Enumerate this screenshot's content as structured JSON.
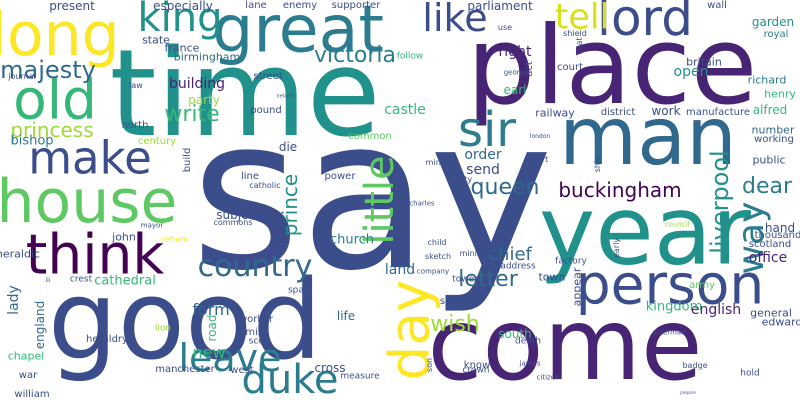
{
  "words": [
    {
      "text": "say",
      "color": "#3b4d8b"
    },
    {
      "text": "time",
      "color": "#21918c"
    },
    {
      "text": "place",
      "color": "#482475"
    },
    {
      "text": "good",
      "color": "#3b4d8b"
    },
    {
      "text": "come",
      "color": "#482475"
    },
    {
      "text": "year",
      "color": "#21918c"
    },
    {
      "text": "man",
      "color": "#31688e"
    },
    {
      "text": "person",
      "color": "#3b4d8b"
    },
    {
      "text": "house",
      "color": "#5ec962"
    },
    {
      "text": "think",
      "color": "#440154"
    },
    {
      "text": "make",
      "color": "#3b4d8b"
    },
    {
      "text": "great",
      "color": "#2a7c8e"
    },
    {
      "text": "long",
      "color": "#fde725"
    },
    {
      "text": "old",
      "color": "#35b779"
    },
    {
      "text": "day",
      "color": "#fde725"
    },
    {
      "text": "duke",
      "color": "#2a7c8e"
    },
    {
      "text": "little",
      "color": "#5ec962"
    },
    {
      "text": "lord",
      "color": "#3b4d8b"
    },
    {
      "text": "sir",
      "color": "#2a7c8e"
    },
    {
      "text": "leave",
      "color": "#2a7c8e"
    },
    {
      "text": "country",
      "color": "#31688e"
    },
    {
      "text": "queen",
      "color": "#31688e"
    },
    {
      "text": "king",
      "color": "#21918c"
    },
    {
      "text": "like",
      "color": "#3b4d8b"
    },
    {
      "text": "tell",
      "color": "#d8e219"
    },
    {
      "text": "way",
      "color": "#2a7c8e"
    },
    {
      "text": "liverpool",
      "color": "#21918c"
    },
    {
      "text": "buckingham",
      "color": "#440154"
    },
    {
      "text": "majesty",
      "color": "#31688e"
    },
    {
      "text": "victoria",
      "color": "#2a7c8e"
    },
    {
      "text": "letter",
      "color": "#31688e"
    },
    {
      "text": "wish",
      "color": "#a0da39"
    },
    {
      "text": "prince",
      "color": "#21918c"
    },
    {
      "text": "write",
      "color": "#35b779"
    },
    {
      "text": "princess",
      "color": "#a0da39"
    },
    {
      "text": "dear",
      "color": "#2a7c8e"
    },
    {
      "text": "chief",
      "color": "#31688e"
    },
    {
      "text": "form",
      "color": "#31688e"
    },
    {
      "text": "new",
      "color": "#35b779"
    },
    {
      "text": "english",
      "color": "#482475"
    },
    {
      "text": "open",
      "color": "#21918c"
    },
    {
      "text": "castle",
      "color": "#35b779"
    },
    {
      "text": "kingdom",
      "color": "#35b779"
    },
    {
      "text": "land",
      "color": "#31688e"
    },
    {
      "text": "order",
      "color": "#31688e"
    },
    {
      "text": "send",
      "color": "#3b4d8b"
    },
    {
      "text": "right",
      "color": "#482475"
    },
    {
      "text": "office",
      "color": "#482475"
    },
    {
      "text": "building",
      "color": "#482475"
    },
    {
      "text": "party",
      "color": "#a0da39"
    },
    {
      "text": "bishop",
      "color": "#2a7c8e"
    },
    {
      "text": "cathedral",
      "color": "#35b779"
    },
    {
      "text": "subject",
      "color": "#3b4d8b"
    },
    {
      "text": "road",
      "color": "#35b779"
    },
    {
      "text": "church",
      "color": "#2a7c8e"
    },
    {
      "text": "life",
      "color": "#31688e"
    },
    {
      "text": "present",
      "color": "#3b4d8b"
    },
    {
      "text": "especially",
      "color": "#3b4d8b"
    },
    {
      "text": "parliament",
      "color": "#3b4d8b"
    },
    {
      "text": "state",
      "color": "#3b4d8b"
    },
    {
      "text": "france",
      "color": "#3b4d8b"
    },
    {
      "text": "birmingham",
      "color": "#31688e"
    },
    {
      "text": "lane",
      "color": "#3b4d8b"
    },
    {
      "text": "enemy",
      "color": "#3b4d8b"
    },
    {
      "text": "supporter",
      "color": "#3b4d8b"
    },
    {
      "text": "wall",
      "color": "#3b4d8b"
    },
    {
      "text": "garden",
      "color": "#21918c"
    },
    {
      "text": "royal",
      "color": "#2a7c8e"
    },
    {
      "text": "britain",
      "color": "#3b4d8b"
    },
    {
      "text": "richard",
      "color": "#2a7c8e"
    },
    {
      "text": "henry",
      "color": "#35b779"
    },
    {
      "text": "alfred",
      "color": "#35b779"
    },
    {
      "text": "number",
      "color": "#31688e"
    },
    {
      "text": "working",
      "color": "#3b4d8b"
    },
    {
      "text": "public",
      "color": "#3b4d8b"
    },
    {
      "text": "hand",
      "color": "#3b4d8b"
    },
    {
      "text": "thousand",
      "color": "#3b4d8b"
    },
    {
      "text": "scotland",
      "color": "#3b4d8b"
    },
    {
      "text": "general",
      "color": "#3b4d8b"
    },
    {
      "text": "edward",
      "color": "#3b4d8b"
    },
    {
      "text": "army",
      "color": "#5ec962"
    },
    {
      "text": "work",
      "color": "#3b4d8b"
    },
    {
      "text": "manufacture",
      "color": "#3b4d8b"
    },
    {
      "text": "railway",
      "color": "#3b4d8b"
    },
    {
      "text": "district",
      "color": "#3b4d8b"
    },
    {
      "text": "court",
      "color": "#3b4d8b"
    },
    {
      "text": "earl",
      "color": "#35b779"
    },
    {
      "text": "south",
      "color": "#35b779"
    },
    {
      "text": "street",
      "color": "#3b4d8b"
    },
    {
      "text": "pound",
      "color": "#3b4d8b"
    },
    {
      "text": "common",
      "color": "#5ec962"
    },
    {
      "text": "north",
      "color": "#3b4d8b"
    },
    {
      "text": "century",
      "color": "#a0da39"
    },
    {
      "text": "die",
      "color": "#3b4d8b"
    },
    {
      "text": "line",
      "color": "#3b4d8b"
    },
    {
      "text": "catholic",
      "color": "#3b4d8b"
    },
    {
      "text": "power",
      "color": "#3b4d8b"
    },
    {
      "text": "commons",
      "color": "#3b4d8b"
    },
    {
      "text": "build",
      "color": "#3b4d8b"
    },
    {
      "text": "john",
      "color": "#3b4d8b"
    },
    {
      "text": "mayor",
      "color": "#3b4d8b"
    },
    {
      "text": "heraldic",
      "color": "#3b4d8b"
    },
    {
      "text": "reform",
      "color": "#fde725"
    },
    {
      "text": "crest",
      "color": "#3b4d8b"
    },
    {
      "text": "lady",
      "color": "#31688e"
    },
    {
      "text": "england",
      "color": "#31688e"
    },
    {
      "text": "chapel",
      "color": "#35b779"
    },
    {
      "text": "war",
      "color": "#3b4d8b"
    },
    {
      "text": "william",
      "color": "#3b4d8b"
    },
    {
      "text": "heraldry",
      "color": "#3b4d8b"
    },
    {
      "text": "manchester",
      "color": "#3b4d8b"
    },
    {
      "text": "west",
      "color": "#3b4d8b"
    },
    {
      "text": "measure",
      "color": "#3b4d8b"
    },
    {
      "text": "cross",
      "color": "#3b4d8b"
    },
    {
      "text": "worker",
      "color": "#3b4d8b"
    },
    {
      "text": "mile",
      "color": "#3b4d8b"
    },
    {
      "text": "scot",
      "color": "#3b4d8b"
    },
    {
      "text": "spain",
      "color": "#3b4d8b"
    },
    {
      "text": "lion",
      "color": "#a0da39"
    },
    {
      "text": "class",
      "color": "#3b4d8b"
    },
    {
      "text": "seal",
      "color": "#3b4d8b"
    },
    {
      "text": "son",
      "color": "#3b4d8b"
    },
    {
      "text": "death",
      "color": "#3b4d8b"
    },
    {
      "text": "crown",
      "color": "#3b4d8b"
    },
    {
      "text": "james",
      "color": "#3b4d8b"
    },
    {
      "text": "minister",
      "color": "#3b4d8b"
    },
    {
      "text": "address",
      "color": "#3b4d8b"
    },
    {
      "text": "tower",
      "color": "#3b4d8b"
    },
    {
      "text": "town",
      "color": "#3b4d8b"
    },
    {
      "text": "appear",
      "color": "#3b4d8b"
    },
    {
      "text": "know",
      "color": "#3b4d8b"
    },
    {
      "text": "factory",
      "color": "#3b4d8b"
    },
    {
      "text": "early",
      "color": "#3b4d8b"
    },
    {
      "text": "ministry",
      "color": "#3b4d8b"
    },
    {
      "text": "city",
      "color": "#3b4d8b"
    },
    {
      "text": "charles",
      "color": "#3b4d8b"
    },
    {
      "text": "report",
      "color": "#3b4d8b"
    },
    {
      "text": "child",
      "color": "#3b4d8b"
    },
    {
      "text": "sketch",
      "color": "#3b4d8b"
    },
    {
      "text": "company",
      "color": "#3b4d8b"
    },
    {
      "text": "citizen",
      "color": "#3b4d8b"
    },
    {
      "text": "ship",
      "color": "#3b4d8b"
    },
    {
      "text": "council",
      "color": "#a0da39"
    },
    {
      "text": "alderman",
      "color": "#3b4d8b"
    },
    {
      "text": "badge",
      "color": "#3b4d8b"
    },
    {
      "text": "hold",
      "color": "#3b4d8b"
    },
    {
      "text": "act",
      "color": "#3b4d8b"
    },
    {
      "text": "shield",
      "color": "#3b4d8b"
    },
    {
      "text": "coat",
      "color": "#3b4d8b"
    },
    {
      "text": "follow",
      "color": "#35b779"
    },
    {
      "text": "george",
      "color": "#3b4d8b"
    },
    {
      "text": "use",
      "color": "#3b4d8b"
    },
    {
      "text": "journal",
      "color": "#3b4d8b"
    },
    {
      "text": "law",
      "color": "#3b4d8b"
    },
    {
      "text": "london",
      "color": "#3b4d8b"
    },
    {
      "text": "iii",
      "color": "#3b4d8b"
    },
    {
      "text": "ireland",
      "color": "#3b4d8b"
    },
    {
      "text": "prepare",
      "color": "#3b4d8b"
    }
  ]
}
